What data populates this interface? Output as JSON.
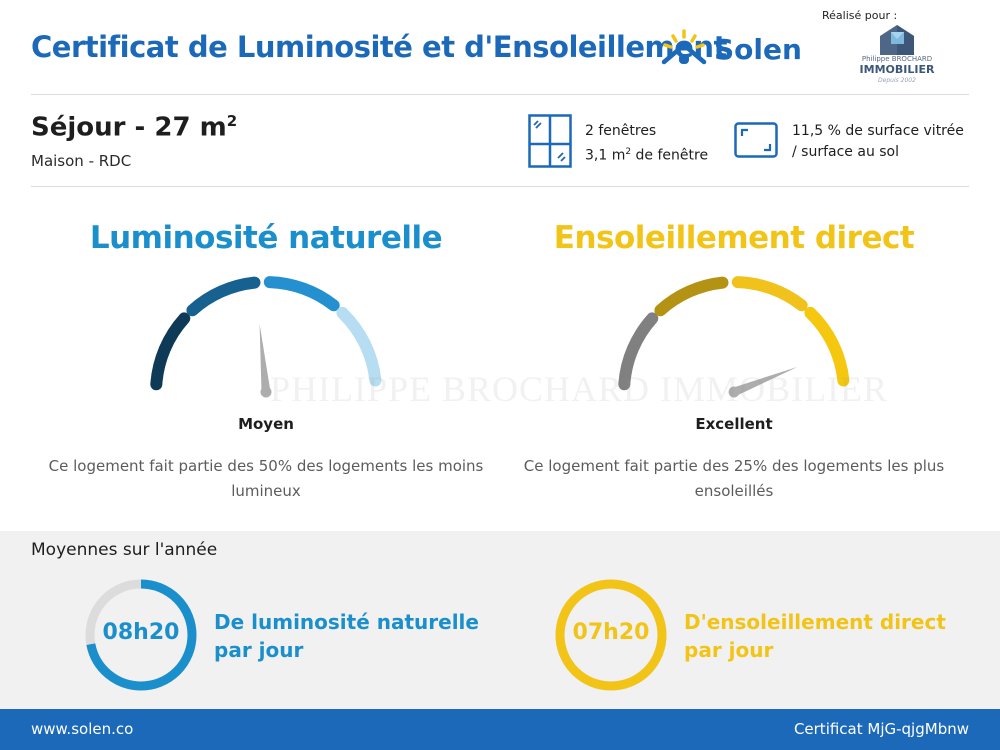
{
  "header": {
    "title": "Certificat de Luminosité et d'Ensoleillement",
    "brand": "Solen",
    "made_for": "Réalisé pour :",
    "agency_small": "Philippe BROCHARD",
    "agency_name": "IMMOBILIER",
    "agency_tag": "Depuis 2002"
  },
  "room": {
    "name": "Séjour - 27 m",
    "name_exp": "2",
    "location": "Maison - RDC"
  },
  "windows": {
    "count": "2 fenêtres",
    "area_prefix": "3,1 m",
    "area_exp": "2",
    "area_suffix": " de fenêtre"
  },
  "surface": {
    "line1": "11,5 % de surface vitrée",
    "line2": "/ surface au sol"
  },
  "luminosity": {
    "title": "Luminosité naturelle",
    "level": "Moyen",
    "description": "Ce logement fait partie des 50% des logements les moins lumineux",
    "color": "#1b8fcb",
    "segment_colors": [
      "#0e3a57",
      "#16618f",
      "#2490cf",
      "#b6ddf1"
    ],
    "needle_fraction": 0.47
  },
  "sunshine": {
    "title": "Ensoleillement direct",
    "level": "Excellent",
    "description": "Ce logement fait partie des 25% des logements les plus ensoleillés",
    "color": "#f2c418",
    "segment_colors": [
      "#808080",
      "#b49213",
      "#f1c21c",
      "#f5c70f"
    ],
    "needle_fraction": 0.88
  },
  "watermark": "PHILIPPE BROCHARD IMMOBILIER",
  "yearly": {
    "title": "Moyennes sur l'année",
    "luminosity_value": "08h20",
    "luminosity_line1": "De luminosité naturelle",
    "luminosity_line2": "par jour",
    "luminosity_fill": 0.72,
    "sunshine_value": "07h20",
    "sunshine_line1": "D'ensoleillement direct",
    "sunshine_line2": "par jour",
    "sunshine_fill": 1.0
  },
  "footer": {
    "website": "www.solen.co",
    "certificate": "Certificat MjG-qjgMbnw"
  },
  "colors": {
    "brand_blue": "#1b69b8",
    "ring_track": "#dcdcdc"
  }
}
